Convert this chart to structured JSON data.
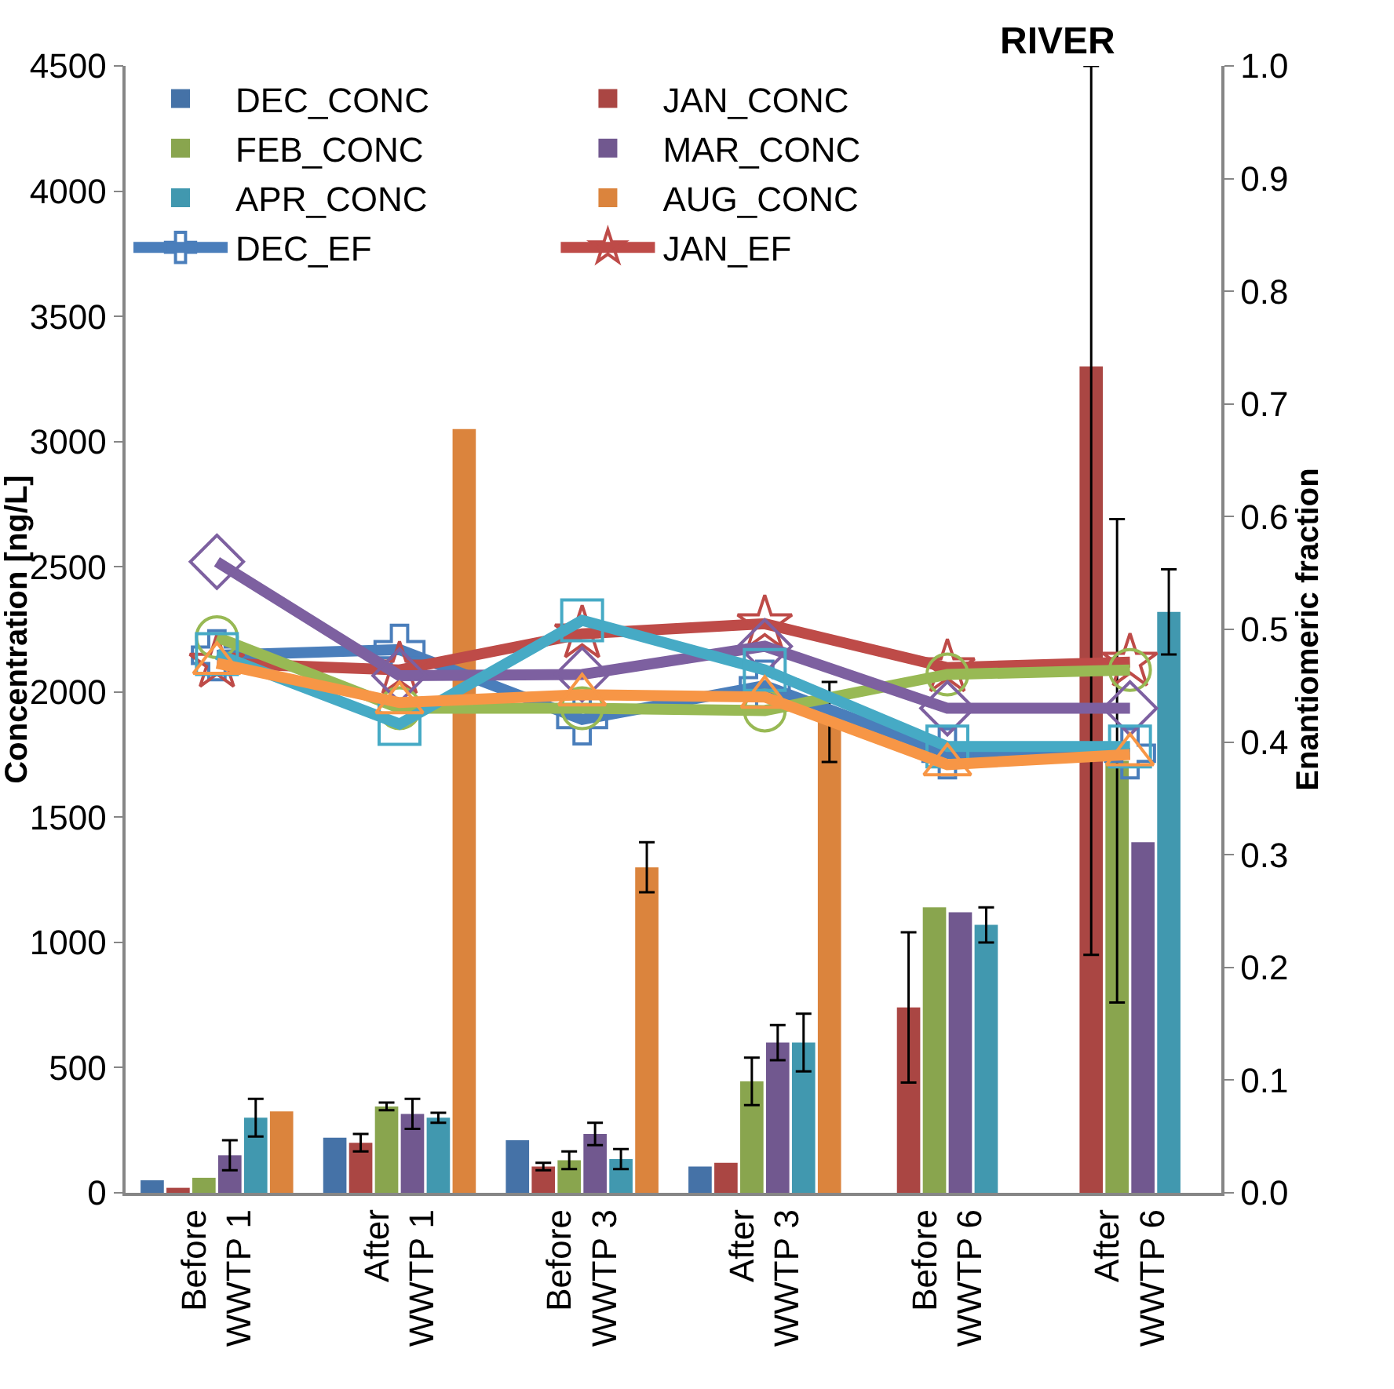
{
  "chart_data": {
    "type": "bar",
    "ylabel": "Concentration [ng/L]",
    "y2label": "Enantiomeric fraction",
    "annotations": [
      "RIVER"
    ],
    "categories": [
      "Before\nWWTP 1",
      "After\nWWTP 1",
      "Before\nWWTP 3",
      "After\nWWTP 3",
      "Before\nWWTP 6",
      "After\nWWTP 6"
    ],
    "series": [
      {
        "name": "DEC_CONC",
        "color": "#4572a7",
        "values": [
          50,
          220,
          210,
          105,
          null,
          null
        ]
      },
      {
        "name": "JAN_CONC",
        "color": "#aa4643",
        "values": [
          20,
          200,
          105,
          120,
          740,
          3300
        ],
        "errors": [
          null,
          35,
          15,
          null,
          300,
          [
            950,
            4500
          ]
        ]
      },
      {
        "name": "FEB_CONC",
        "color": "#89a54e",
        "values": [
          60,
          345,
          130,
          445,
          1140,
          1725
        ],
        "errors": [
          null,
          15,
          35,
          95,
          null,
          965
        ]
      },
      {
        "name": "MAR_CONC",
        "color": "#71588f",
        "values": [
          150,
          315,
          235,
          600,
          1120,
          1400
        ],
        "errors": [
          60,
          60,
          45,
          70,
          null,
          null
        ]
      },
      {
        "name": "APR_CONC",
        "color": "#4198af",
        "values": [
          300,
          300,
          135,
          600,
          1070,
          2320
        ],
        "errors": [
          75,
          20,
          40,
          115,
          70,
          170
        ]
      },
      {
        "name": "AUG_CONC",
        "color": "#db843d",
        "values": [
          325,
          3050,
          1300,
          1880,
          null,
          null
        ],
        "errors": [
          null,
          null,
          100,
          160,
          null,
          null
        ]
      },
      {
        "name": "DEC_EF",
        "type": "line",
        "axis": "y2",
        "marker": "cross",
        "color": "#4a7ebb",
        "values": [
          0.477,
          0.482,
          0.42,
          0.45,
          0.39,
          0.39
        ]
      },
      {
        "name": "JAN_EF",
        "type": "line",
        "axis": "y2",
        "marker": "star",
        "color": "#be4b48",
        "values": [
          0.47,
          0.464,
          0.496,
          0.505,
          0.466,
          0.471
        ]
      },
      {
        "type": "line",
        "axis": "y2",
        "marker": "circle",
        "color": "#98b954",
        "values": [
          0.493,
          0.43,
          0.43,
          0.428,
          0.46,
          0.464
        ]
      },
      {
        "type": "line",
        "axis": "y2",
        "marker": "diamond",
        "color": "#7d60a0",
        "values": [
          0.56,
          0.459,
          0.46,
          0.485,
          0.43,
          0.43
        ]
      },
      {
        "type": "line",
        "axis": "y2",
        "marker": "square",
        "color": "#46aac5",
        "values": [
          0.478,
          0.416,
          0.508,
          0.464,
          0.396,
          0.396
        ]
      },
      {
        "type": "line",
        "axis": "y2",
        "marker": "triangle",
        "color": "#f79646",
        "values": [
          0.47,
          0.435,
          0.442,
          0.44,
          0.38,
          0.389
        ]
      }
    ],
    "ylim": [
      0,
      4500
    ],
    "yticks": [
      0,
      500,
      1000,
      1500,
      2000,
      2500,
      3000,
      3500,
      4000,
      4500
    ],
    "y2lim": [
      0,
      1
    ],
    "y2ticks": [
      {
        "value": 0,
        "label": "0.0"
      },
      {
        "value": 0.1,
        "label": "0.1"
      },
      {
        "value": 0.2,
        "label": "0.2"
      },
      {
        "value": 0.3,
        "label": "0.3"
      },
      {
        "value": 0.4,
        "label": "0.4"
      },
      {
        "value": 0.5,
        "label": "0.5"
      },
      {
        "value": 0.6,
        "label": "0.6"
      },
      {
        "value": 0.7,
        "label": "0.7"
      },
      {
        "value": 0.8,
        "label": "0.8"
      },
      {
        "value": 0.9,
        "label": "0.9"
      },
      {
        "value": 1,
        "label": "1.0"
      }
    ],
    "grid": false,
    "legend": "top left",
    "line_style": "solid"
  }
}
